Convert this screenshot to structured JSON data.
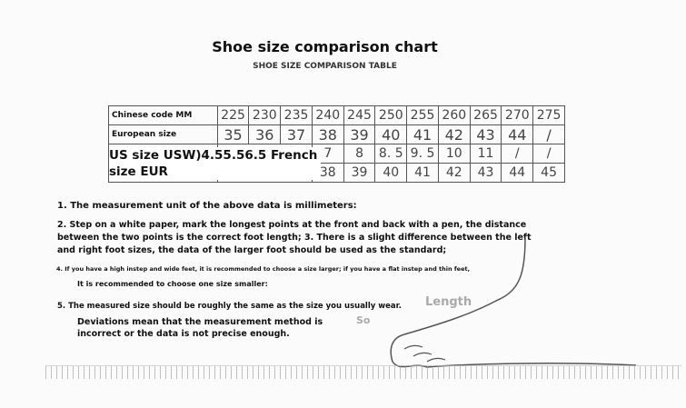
{
  "title": "Shoe size comparison chart",
  "subtitle": "SHOE SIZE COMPARISON TABLE",
  "table": {
    "rows": [
      {
        "label": "Chinese code MM",
        "values": [
          "225",
          "230",
          "235",
          "240",
          "245",
          "250",
          "255",
          "260",
          "265",
          "270",
          "275"
        ]
      },
      {
        "label": "European size",
        "values": [
          "35",
          "36",
          "37",
          "38",
          "39",
          "40",
          "41",
          "42",
          "43",
          "44",
          "/"
        ]
      },
      {
        "label": "US size USW)4.55.56.5 French",
        "values": [
          "",
          "",
          "",
          "7",
          "8",
          "8. 5",
          "9. 5",
          "10",
          "11",
          "/",
          "/"
        ]
      },
      {
        "label": "size EUR",
        "values": [
          "",
          "",
          "",
          "38",
          "39",
          "40",
          "41",
          "42",
          "43",
          "44",
          "45"
        ]
      }
    ]
  },
  "notes": {
    "n1": "1. The measurement unit of the above data is millimeters:",
    "n2": "2. Step on a white paper, mark the longest points at the front and back with a pen, the distance between the two points is the correct foot length; 3. There is a slight difference between the left and right foot sizes, the data of the larger foot should be used as the standard;",
    "n4": "4. If you have a high instep and wide feet, it is recommended to choose a size larger; if you have a flat instep and thin feet,",
    "n4b": "It is recommended to choose one size smaller:",
    "n5": "5. The measured size should be roughly the same as the size you usually wear.",
    "n5b": "Deviations mean that the measurement method is incorrect or the data is not precise enough."
  },
  "diagram": {
    "length_label": "Length",
    "so_label": "So"
  }
}
